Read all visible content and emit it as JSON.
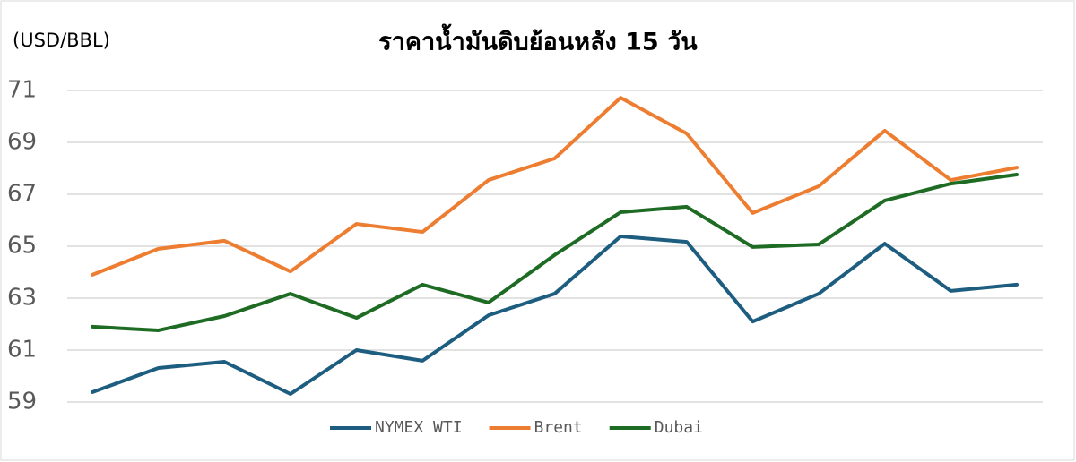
{
  "chart_data": {
    "type": "line",
    "title": "ราคาน้ำมันดิบย้อนหลัง 15 วัน",
    "y_label": "(USD/BBL)",
    "categories": [
      null,
      null,
      null,
      null,
      null,
      null,
      null,
      null,
      null,
      null,
      null,
      null,
      null,
      null,
      null
    ],
    "series": [
      {
        "name": "NYMEX WTI",
        "color": "#1d5d80",
        "values": [
          59.38,
          60.31,
          60.55,
          59.31,
          61.0,
          60.59,
          62.34,
          63.17,
          65.38,
          65.17,
          62.1,
          63.17,
          65.1,
          63.28,
          63.52
        ]
      },
      {
        "name": "Brent",
        "color": "#ed7d31",
        "values": [
          63.9,
          64.9,
          65.21,
          64.03,
          65.86,
          65.55,
          67.55,
          68.38,
          70.72,
          69.34,
          66.28,
          67.31,
          69.45,
          67.55,
          68.03
        ]
      },
      {
        "name": "Dubai",
        "color": "#1e6b24",
        "values": [
          61.9,
          61.76,
          62.31,
          63.17,
          62.24,
          63.52,
          62.83,
          64.66,
          66.31,
          66.52,
          64.97,
          65.07,
          66.76,
          67.41,
          67.76
        ]
      }
    ],
    "ylim": [
      59,
      71
    ],
    "yticks": [
      59,
      61,
      63,
      65,
      67,
      69,
      71
    ],
    "grid": true,
    "legend": "bottom"
  }
}
